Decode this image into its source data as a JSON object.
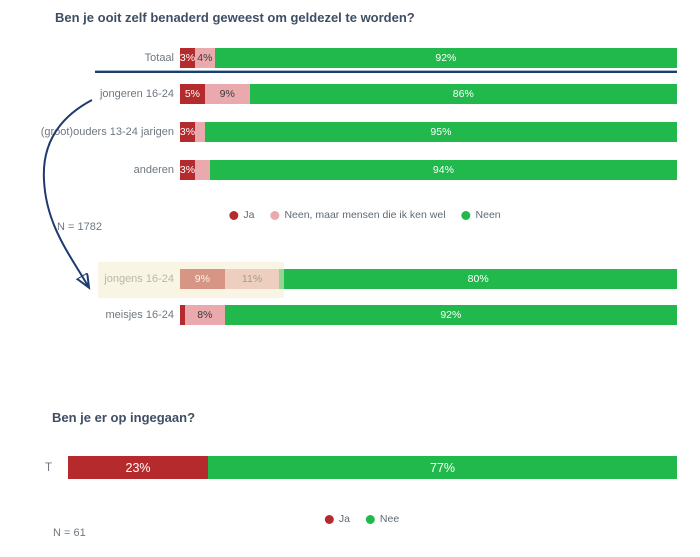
{
  "colors": {
    "red": "#b42a2d",
    "pink": "#e9a9ad",
    "green": "#21b84c",
    "navy": "#1f3a6d",
    "highlight": "#f2edcd",
    "title_text": "#3f4e63",
    "label_text": "#6e7882"
  },
  "chart1": {
    "title": "Ben je ooit zelf benaderd geweest om geldezel te worden?",
    "n_label": "N = 1782",
    "legend": [
      {
        "label": "Ja"
      },
      {
        "label": "Neen, maar mensen die ik ken wel"
      },
      {
        "label": "Neen"
      }
    ],
    "rows": [
      {
        "label": "Totaal",
        "segments": [
          {
            "pct": 3,
            "label": "3%"
          },
          {
            "pct": 4,
            "label": "4%"
          },
          {
            "pct": 92,
            "label": "92%"
          }
        ]
      },
      {
        "label": "jongeren 16-24",
        "segments": [
          {
            "pct": 5,
            "label": "5%"
          },
          {
            "pct": 9,
            "label": "9%"
          },
          {
            "pct": 86,
            "label": "86%"
          }
        ]
      },
      {
        "label": "(groot)ouders 13-24 jarigen",
        "segments": [
          {
            "pct": 3,
            "label": "3%"
          },
          {
            "pct": 2,
            "label": ""
          },
          {
            "pct": 95,
            "label": "95%"
          }
        ]
      },
      {
        "label": "anderen",
        "segments": [
          {
            "pct": 3,
            "label": "3%"
          },
          {
            "pct": 3,
            "label": ""
          },
          {
            "pct": 94,
            "label": "94%"
          }
        ]
      },
      {
        "label": "jongens 16-24",
        "segments": [
          {
            "pct": 9,
            "label": "9%"
          },
          {
            "pct": 11,
            "label": "11%"
          },
          {
            "pct": 80,
            "label": "80%"
          }
        ]
      },
      {
        "label": "meisjes 16-24",
        "segments": [
          {
            "pct": 1,
            "label": ""
          },
          {
            "pct": 8,
            "label": "8%"
          },
          {
            "pct": 92,
            "label": "92%"
          }
        ]
      }
    ]
  },
  "chart2": {
    "title": "Ben je er op ingegaan?",
    "n_label": "N = 61",
    "legend": [
      {
        "label": "Ja"
      },
      {
        "label": "Nee"
      }
    ],
    "rows": [
      {
        "label": "T",
        "segments": [
          {
            "pct": 23,
            "label": "23%"
          },
          {
            "pct": 77,
            "label": "77%"
          }
        ]
      }
    ]
  },
  "chart_data": [
    {
      "type": "bar",
      "orientation": "horizontal",
      "stacked": true,
      "title": "Ben je ooit zelf benaderd geweest om geldezel te worden?",
      "sample_note": "N = 1782",
      "categories": [
        "Totaal",
        "jongeren 16-24",
        "(groot)ouders 13-24 jarigen",
        "anderen",
        "jongens 16-24",
        "meisjes 16-24"
      ],
      "series": [
        {
          "name": "Ja",
          "color": "#b42a2d",
          "values": [
            3,
            5,
            3,
            3,
            9,
            1
          ]
        },
        {
          "name": "Neen, maar mensen die ik ken wel",
          "color": "#e9a9ad",
          "values": [
            4,
            9,
            2,
            3,
            11,
            8
          ]
        },
        {
          "name": "Neen",
          "color": "#21b84c",
          "values": [
            92,
            86,
            95,
            94,
            80,
            92
          ]
        }
      ],
      "xlim": [
        0,
        100
      ],
      "legend_position": "bottom-center",
      "annotations": [
        "navy curved arrow from 'jongeren 16-24' row to 'jongens 16-24' row",
        "cream highlight box over 'jongens 16-24' label and left bar segments",
        "horizontal navy divider line under 'Totaal' bar"
      ],
      "notes": "Small unlabeled segments (2%, 3%, 1%) estimated from pixel widths"
    },
    {
      "type": "bar",
      "orientation": "horizontal",
      "stacked": true,
      "title": "Ben je er op ingegaan?",
      "sample_note": "N = 61",
      "categories": [
        "T"
      ],
      "series": [
        {
          "name": "Ja",
          "color": "#b42a2d",
          "values": [
            23
          ]
        },
        {
          "name": "Nee",
          "color": "#21b84c",
          "values": [
            77
          ]
        }
      ],
      "xlim": [
        0,
        100
      ],
      "legend_position": "bottom-center"
    }
  ]
}
